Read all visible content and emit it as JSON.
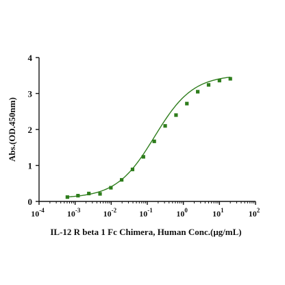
{
  "chart_data": {
    "type": "scatter",
    "title": "",
    "xlabel": "IL-12 R beta 1 Fc Chimera, Human Conc.(μg/mL)",
    "ylabel": "Abs.(OD.450nm)",
    "x_scale": "log",
    "xlim": [
      0.0001,
      100
    ],
    "ylim": [
      0,
      4
    ],
    "x_ticks": [
      {
        "base": "10",
        "exp": "-4"
      },
      {
        "base": "10",
        "exp": "-3"
      },
      {
        "base": "10",
        "exp": "-2"
      },
      {
        "base": "10",
        "exp": "-1"
      },
      {
        "base": "10",
        "exp": "0"
      },
      {
        "base": "10",
        "exp": "1"
      },
      {
        "base": "10",
        "exp": "2"
      }
    ],
    "y_ticks": [
      "0",
      "1",
      "2",
      "3",
      "4"
    ],
    "grid": false,
    "legend": "none",
    "marker_color": "#2e7d1c",
    "curve_color": "#2e7d1c",
    "series": [
      {
        "x": [
          0.00061,
          0.0012,
          0.0024,
          0.0049,
          0.0098,
          0.0195,
          0.039,
          0.078,
          0.156,
          0.3125,
          0.625,
          1.25,
          2.5,
          5,
          10,
          20
        ],
        "y": [
          0.12,
          0.16,
          0.22,
          0.21,
          0.38,
          0.6,
          0.89,
          1.24,
          1.67,
          2.1,
          2.4,
          2.72,
          3.05,
          3.24,
          3.36,
          3.41
        ]
      }
    ],
    "fit": {
      "model": "4PL",
      "bottom": 0.09,
      "top": 3.52,
      "ec50": 0.16,
      "hill": 0.82
    }
  }
}
